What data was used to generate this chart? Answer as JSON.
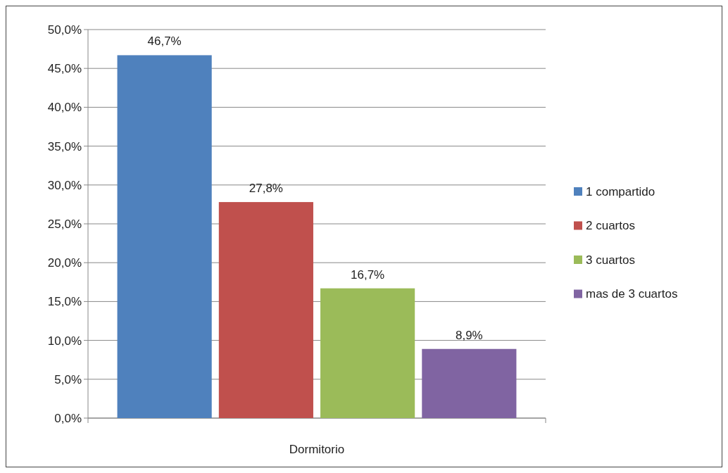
{
  "chart_data": {
    "type": "bar",
    "categories": [
      "Dormitorio"
    ],
    "series": [
      {
        "name": "1 compartido",
        "color": "#4f81bd",
        "values": [
          46.7
        ],
        "value_labels": [
          "46,7%"
        ]
      },
      {
        "name": "2 cuartos",
        "color": "#c0504d",
        "values": [
          27.8
        ],
        "value_labels": [
          "27,8%"
        ]
      },
      {
        "name": "3 cuartos",
        "color": "#9bbb59",
        "values": [
          16.7
        ],
        "value_labels": [
          "16,7%"
        ]
      },
      {
        "name": "mas de 3 cuartos",
        "color": "#8064a2",
        "values": [
          8.9
        ],
        "value_labels": [
          "8,9%"
        ]
      }
    ],
    "ylim": [
      0,
      50
    ],
    "yticks": [
      {
        "value": 0,
        "label": "0,0%"
      },
      {
        "value": 5,
        "label": "5,0%"
      },
      {
        "value": 10,
        "label": "10,0%"
      },
      {
        "value": 15,
        "label": "15,0%"
      },
      {
        "value": 20,
        "label": "20,0%"
      },
      {
        "value": 25,
        "label": "25,0%"
      },
      {
        "value": 30,
        "label": "30,0%"
      },
      {
        "value": 35,
        "label": "35,0%"
      },
      {
        "value": 40,
        "label": "40,0%"
      },
      {
        "value": 45,
        "label": "45,0%"
      },
      {
        "value": 50,
        "label": "50,0%"
      }
    ],
    "grid": "y",
    "legend": "right"
  }
}
